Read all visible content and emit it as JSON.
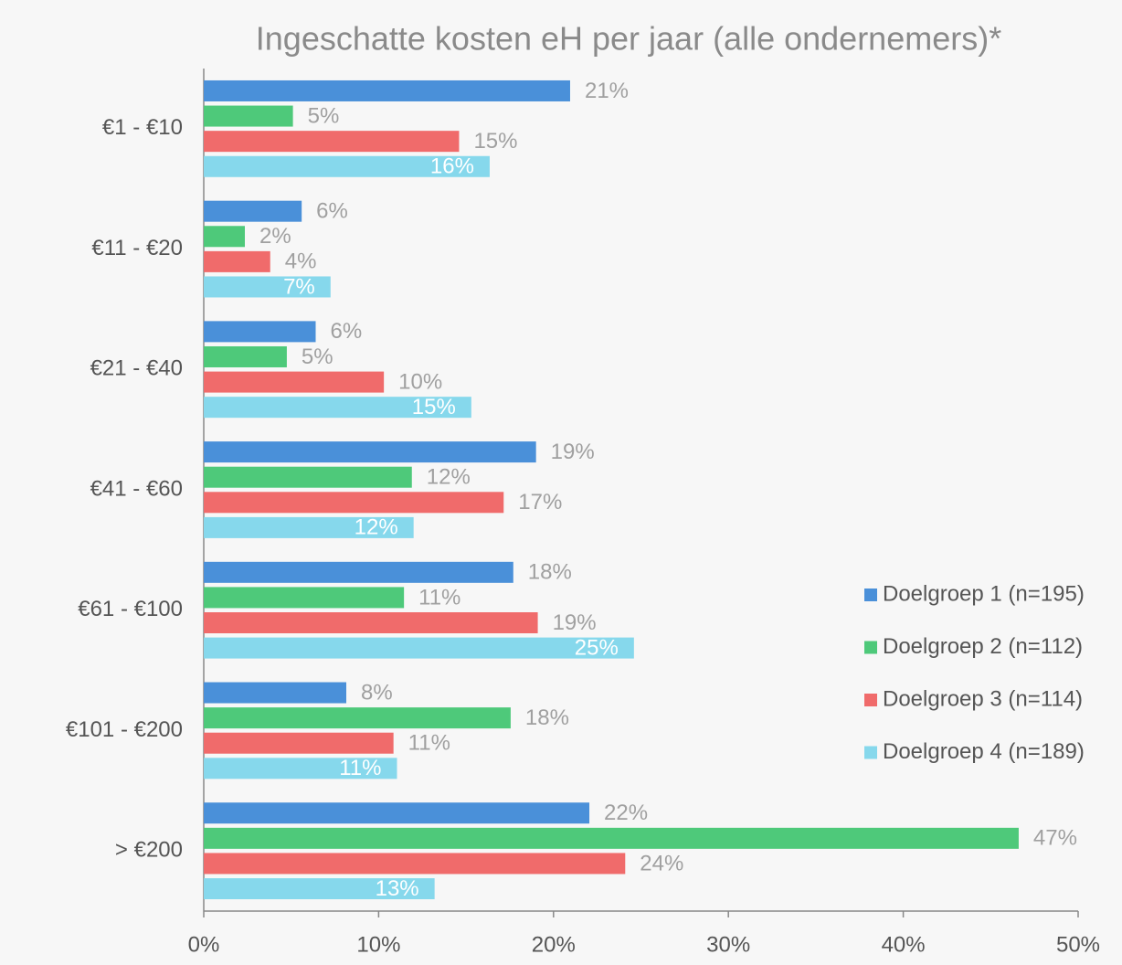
{
  "chart_data": {
    "type": "barh",
    "title": "Ingeschatte kosten eH per jaar (alle ondernemers)*",
    "categories": [
      "€1 - €10",
      "€11 - €20",
      "€21 - €40",
      "€41 - €60",
      "€61 - €100",
      "€101 - €200",
      "> €200"
    ],
    "series": [
      {
        "name": "Doelgroep 1 (n=195)",
        "color": "#4a90d9",
        "values": [
          20.95,
          5.6,
          6.4,
          19.0,
          17.7,
          8.15,
          22.05
        ],
        "value_labels": [
          "21%",
          "6%",
          "6%",
          "19%",
          "18%",
          "8%",
          "22%"
        ]
      },
      {
        "name": "Doelgroep 2 (n=112)",
        "color": "#4ec97a",
        "values": [
          5.1,
          2.35,
          4.75,
          11.9,
          11.45,
          17.55,
          46.6
        ],
        "value_labels": [
          "5%",
          "2%",
          "5%",
          "12%",
          "11%",
          "18%",
          "47%"
        ]
      },
      {
        "name": "Doelgroep 3 (n=114)",
        "color": "#f06b6b",
        "values": [
          14.6,
          3.8,
          10.3,
          17.15,
          19.1,
          10.85,
          24.1
        ],
        "value_labels": [
          "15%",
          "4%",
          "10%",
          "17%",
          "19%",
          "11%",
          "24%"
        ]
      },
      {
        "name": "Doelgroep 4 (n=189)",
        "color": "#86d8ec",
        "values": [
          16.35,
          7.25,
          15.3,
          12.0,
          24.6,
          11.05,
          13.2
        ],
        "value_labels": [
          "16%",
          "7%",
          "15%",
          "12%",
          "25%",
          "11%",
          "13%"
        ]
      }
    ],
    "xlim": [
      0,
      50
    ],
    "xticks": [
      {
        "value": 0,
        "label": "0%"
      },
      {
        "value": 10,
        "label": "10%"
      },
      {
        "value": 20,
        "label": "20%"
      },
      {
        "value": 30,
        "label": "30%"
      },
      {
        "value": 40,
        "label": "40%"
      },
      {
        "value": 50,
        "label": "50%"
      }
    ],
    "legend": "right",
    "grid": false
  }
}
